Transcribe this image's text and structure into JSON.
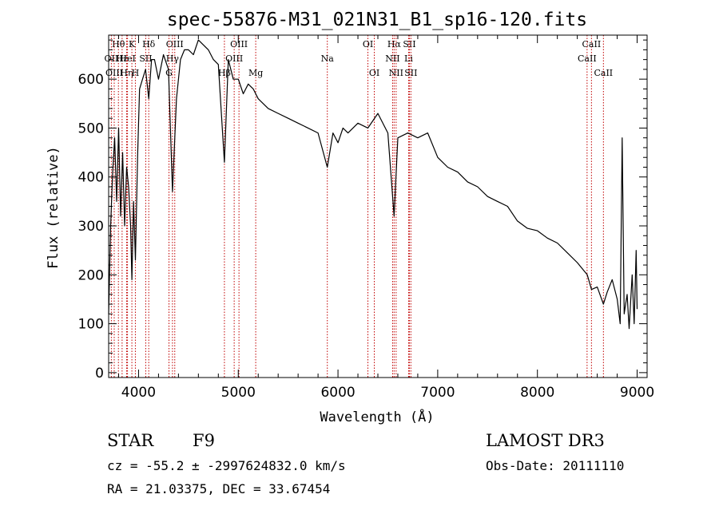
{
  "chart_data": {
    "type": "line",
    "title": "spec-55876-M31_021N31_B1_sp16-120.fits",
    "xlabel": "Wavelength (Å)",
    "ylabel": "Flux (relative)",
    "xlim": [
      3700,
      9100
    ],
    "ylim": [
      -10,
      690
    ],
    "x_ticks": [
      4000,
      5000,
      6000,
      7000,
      8000,
      9000
    ],
    "y_ticks": [
      0,
      100,
      200,
      300,
      400,
      500,
      600
    ],
    "grid": false,
    "series": [
      {
        "name": "flux",
        "x": [
          3700,
          3720,
          3740,
          3760,
          3780,
          3800,
          3820,
          3840,
          3860,
          3880,
          3900,
          3920,
          3933,
          3950,
          3968,
          3990,
          4010,
          4040,
          4070,
          4102,
          4130,
          4160,
          4200,
          4250,
          4300,
          4340,
          4380,
          4420,
          4460,
          4500,
          4550,
          4600,
          4650,
          4700,
          4750,
          4800,
          4861,
          4900,
          4950,
          5000,
          5050,
          5100,
          5150,
          5200,
          5300,
          5400,
          5500,
          5600,
          5700,
          5800,
          5893,
          5950,
          6000,
          6050,
          6100,
          6200,
          6300,
          6400,
          6500,
          6563,
          6600,
          6700,
          6800,
          6900,
          7000,
          7100,
          7200,
          7300,
          7400,
          7500,
          7600,
          7700,
          7800,
          7900,
          8000,
          8100,
          8200,
          8300,
          8400,
          8500,
          8542,
          8600,
          8662,
          8700,
          8750,
          8800,
          8830,
          8850,
          8870,
          8900,
          8920,
          8950,
          8970,
          8990,
          9000
        ],
        "y": [
          120,
          300,
          410,
          480,
          350,
          500,
          320,
          450,
          300,
          420,
          380,
          300,
          190,
          350,
          230,
          440,
          580,
          600,
          620,
          560,
          640,
          640,
          600,
          650,
          620,
          370,
          560,
          640,
          660,
          660,
          650,
          680,
          670,
          660,
          640,
          630,
          430,
          640,
          600,
          600,
          570,
          590,
          580,
          560,
          540,
          530,
          520,
          510,
          500,
          490,
          420,
          490,
          470,
          500,
          490,
          510,
          500,
          530,
          490,
          320,
          480,
          490,
          480,
          490,
          440,
          420,
          410,
          390,
          380,
          360,
          350,
          340,
          310,
          295,
          290,
          275,
          265,
          245,
          225,
          200,
          170,
          175,
          140,
          165,
          190,
          150,
          100,
          480,
          120,
          160,
          90,
          200,
          100,
          250,
          130
        ]
      }
    ],
    "lines": [
      {
        "label": "Hθ",
        "wavelength": 3798,
        "row": 1
      },
      {
        "label": "OII",
        "wavelength": 3727,
        "row": 2
      },
      {
        "label": "OIII",
        "wavelength": 3756,
        "row": 3
      },
      {
        "label": "Hε",
        "wavelength": 3835,
        "row": 2
      },
      {
        "label": "HeI",
        "wavelength": 3889,
        "row": 2
      },
      {
        "label": "Hη",
        "wavelength": 3880,
        "row": 3
      },
      {
        "label": "K",
        "wavelength": 3933,
        "row": 1
      },
      {
        "label": "H",
        "wavelength": 3968,
        "row": 3
      },
      {
        "label": "SII",
        "wavelength": 4072,
        "row": 2
      },
      {
        "label": "Hδ",
        "wavelength": 4102,
        "row": 1
      },
      {
        "label": "OIII",
        "wavelength": 4363,
        "row": 1
      },
      {
        "label": "Hγ",
        "wavelength": 4340,
        "row": 2
      },
      {
        "label": "G",
        "wavelength": 4305,
        "row": 3
      },
      {
        "label": "OIII",
        "wavelength": 5007,
        "row": 1
      },
      {
        "label": "OIII",
        "wavelength": 4959,
        "row": 2
      },
      {
        "label": "Hβ",
        "wavelength": 4861,
        "row": 3
      },
      {
        "label": "Mg",
        "wavelength": 5175,
        "row": 3
      },
      {
        "label": "Na",
        "wavelength": 5893,
        "row": 2
      },
      {
        "label": "OI",
        "wavelength": 6300,
        "row": 1
      },
      {
        "label": "OI",
        "wavelength": 6364,
        "row": 3
      },
      {
        "label": "Hα",
        "wavelength": 6563,
        "row": 1
      },
      {
        "label": "NII",
        "wavelength": 6548,
        "row": 2
      },
      {
        "label": "NII",
        "wavelength": 6583,
        "row": 3
      },
      {
        "label": "SII",
        "wavelength": 6716,
        "row": 1
      },
      {
        "label": "Li",
        "wavelength": 6708,
        "row": 2
      },
      {
        "label": "SII",
        "wavelength": 6731,
        "row": 3
      },
      {
        "label": "CaII",
        "wavelength": 8542,
        "row": 1
      },
      {
        "label": "CaII",
        "wavelength": 8498,
        "row": 2
      },
      {
        "label": "CaII",
        "wavelength": 8662,
        "row": 3
      }
    ]
  },
  "footer": {
    "class_label": "STAR",
    "subclass": "F9",
    "survey": "LAMOST DR3",
    "redshift": "cz = -55.2 ± -2997624832.0 km/s",
    "obs_date": "Obs-Date: 20111110",
    "coordinates": "RA =  21.03375, DEC =  33.67454"
  }
}
